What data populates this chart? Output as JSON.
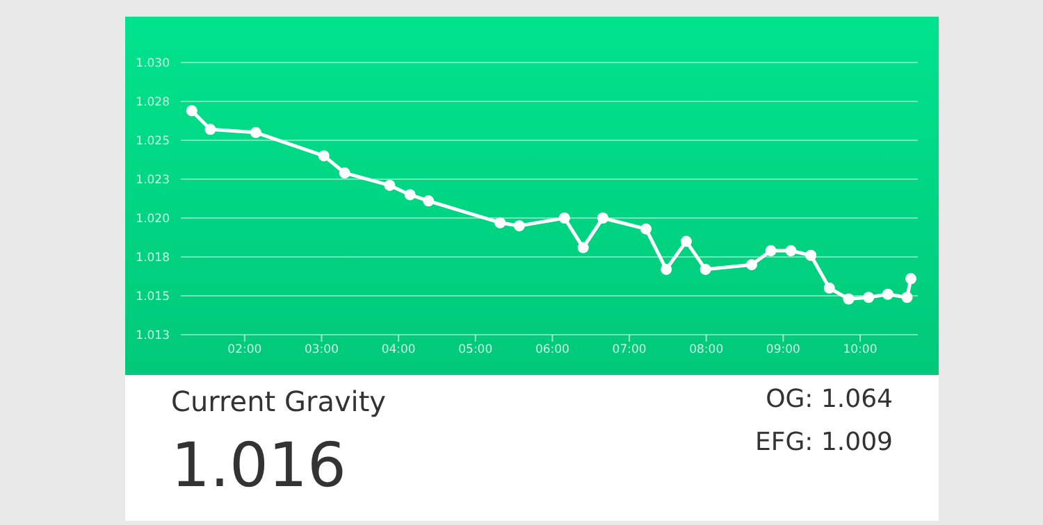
{
  "chart_data": {
    "type": "line",
    "x": [
      1.313,
      1.554,
      2.145,
      3.03,
      3.3,
      3.885,
      4.15,
      4.39,
      5.32,
      5.57,
      6.157,
      6.4,
      6.656,
      7.216,
      7.48,
      7.74,
      7.99,
      8.59,
      8.84,
      9.1,
      9.36,
      9.6,
      9.85,
      10.11,
      10.36,
      10.61,
      10.66
    ],
    "series": [
      {
        "color": "#ffffff",
        "values": [
          1.0269,
          1.0257,
          1.0255,
          1.024,
          1.0229,
          1.0221,
          1.0215,
          1.0211,
          1.0197,
          1.0195,
          1.02,
          1.0181,
          1.02,
          1.0193,
          1.0167,
          1.0185,
          1.0167,
          1.017,
          1.0179,
          1.0179,
          1.0176,
          1.0155,
          1.0148,
          1.0149,
          1.0151,
          1.0149,
          1.0161
        ]
      }
    ],
    "xlim": [
      1.17,
      10.75
    ],
    "xticks": [
      {
        "value": 2,
        "label": "02:00"
      },
      {
        "value": 3,
        "label": "03:00"
      },
      {
        "value": 4,
        "label": "04:00"
      },
      {
        "value": 5,
        "label": "05:00"
      },
      {
        "value": 6,
        "label": "06:00"
      },
      {
        "value": 7,
        "label": "07:00"
      },
      {
        "value": 8,
        "label": "08:00"
      },
      {
        "value": 9,
        "label": "09:00"
      },
      {
        "value": 10,
        "label": "10:00"
      }
    ],
    "ylim": [
      1.0125,
      1.03
    ],
    "yticks": [
      {
        "value": 1.0125,
        "label": "1.013"
      },
      {
        "value": 1.015,
        "label": "1.015"
      },
      {
        "value": 1.0175,
        "label": "1.018"
      },
      {
        "value": 1.02,
        "label": "1.020"
      },
      {
        "value": 1.0225,
        "label": "1.023"
      },
      {
        "value": 1.025,
        "label": "1.025"
      },
      {
        "value": 1.0275,
        "label": "1.028"
      },
      {
        "value": 1.03,
        "label": "1.030"
      }
    ],
    "grid": "y",
    "marker": "circle",
    "line_style": "solid",
    "legend": false,
    "annotations": [
      "Current Gravity",
      "1.016",
      "OG: 1.064",
      "EFG: 1.009"
    ]
  }
}
